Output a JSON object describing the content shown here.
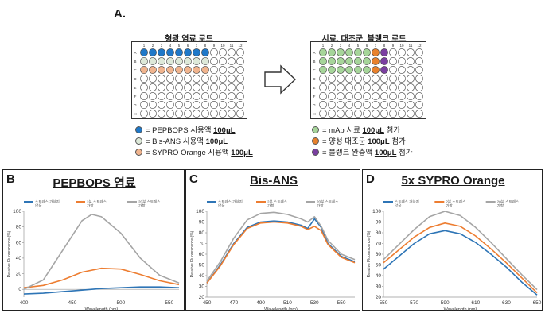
{
  "panel_a": {
    "letter": "A.",
    "plate_left_title": "형광 염료 로드",
    "plate_right_title": "시료, 대조군, 블랭크 로드",
    "col_numbers": [
      "1",
      "2",
      "3",
      "4",
      "5",
      "6",
      "7",
      "8",
      "9",
      "10",
      "11",
      "12"
    ],
    "row_letters": [
      "A",
      "B",
      "C",
      "D",
      "E",
      "F",
      "G",
      "H"
    ],
    "colors": {
      "pepbops": "#1f78c8",
      "bisans": "#dde9d9",
      "sypro": "#f0b48e",
      "mab": "#a6d59a",
      "positive": "#e8812c",
      "blank": "#7a3fa0"
    },
    "legend_left": [
      {
        "icon": "blue-dot",
        "prefix": "= PEPBOPS 시용액 ",
        "amount": "100μL",
        "suffix": ""
      },
      {
        "icon": "light-green-dot",
        "prefix": "= Bis-ANS 시용액 ",
        "amount": "100μL",
        "suffix": ""
      },
      {
        "icon": "peach-dot",
        "prefix": "= SYPRO Orange 시용액 ",
        "amount": "100μL",
        "suffix": ""
      }
    ],
    "legend_right": [
      {
        "icon": "green-dot",
        "prefix": "= mAb 시료 ",
        "amount": "100μL",
        "suffix": " 첨가"
      },
      {
        "icon": "orange-dot",
        "prefix": "= 양성 대조군 ",
        "amount": "100μL",
        "suffix": " 첨가"
      },
      {
        "icon": "purple-dot",
        "prefix": "= 블랭크 완충액 ",
        "amount": "100μL",
        "suffix": " 첨가"
      }
    ]
  },
  "chart_data": [
    {
      "panel": "B",
      "type": "line",
      "title": "PEPBOPS 염료",
      "xlabel": "Wavelength (nm)",
      "ylabel": "Relative Fluorescence (%)",
      "xlim": [
        400,
        560
      ],
      "ylim": [
        -10,
        100
      ],
      "xticks": [
        400,
        450,
        500,
        550
      ],
      "yticks": [
        0,
        20,
        40,
        60,
        80,
        100
      ],
      "legend": "top",
      "series": [
        {
          "name": "스트레스 가하지 않음",
          "color": "#2e75b6",
          "x": [
            400,
            420,
            440,
            460,
            480,
            500,
            520,
            540,
            560
          ],
          "y": [
            -6,
            -5,
            -3,
            -1,
            1,
            2,
            3,
            3,
            2
          ]
        },
        {
          "name": "2분 스트레스 가함",
          "color": "#ed7d31",
          "x": [
            400,
            420,
            440,
            460,
            480,
            500,
            520,
            540,
            560
          ],
          "y": [
            2,
            5,
            12,
            22,
            27,
            26,
            19,
            11,
            6
          ]
        },
        {
          "name": "20분 스트레스 가함",
          "color": "#a5a5a5",
          "x": [
            400,
            420,
            440,
            460,
            470,
            480,
            500,
            520,
            540,
            560
          ],
          "y": [
            0,
            12,
            50,
            88,
            96,
            93,
            72,
            40,
            18,
            8
          ]
        }
      ]
    },
    {
      "panel": "C",
      "type": "line",
      "title": "Bis-ANS",
      "xlabel": "Wavelength (nm)",
      "ylabel": "Relative Fluorescence (%)",
      "xlim": [
        450,
        560
      ],
      "ylim": [
        20,
        100
      ],
      "xticks": [
        450,
        470,
        490,
        510,
        530,
        550
      ],
      "yticks": [
        20,
        30,
        40,
        50,
        60,
        70,
        80,
        90,
        100
      ],
      "legend": "top",
      "series": [
        {
          "name": "스트레스 가하지 않음",
          "color": "#2e75b6",
          "x": [
            450,
            460,
            470,
            480,
            490,
            500,
            510,
            520,
            525,
            530,
            535,
            540,
            550,
            560
          ],
          "y": [
            33,
            50,
            70,
            85,
            90,
            91,
            90,
            87,
            84,
            93,
            85,
            70,
            58,
            53
          ]
        },
        {
          "name": "2분 스트레스 가함",
          "color": "#ed7d31",
          "x": [
            450,
            460,
            470,
            480,
            490,
            500,
            510,
            520,
            525,
            530,
            535,
            540,
            550,
            560
          ],
          "y": [
            33,
            49,
            69,
            84,
            89,
            90,
            89,
            86,
            83,
            86,
            82,
            69,
            57,
            52
          ]
        },
        {
          "name": "20분 스트레스 가함",
          "color": "#a5a5a5",
          "x": [
            450,
            460,
            470,
            480,
            490,
            500,
            510,
            520,
            525,
            530,
            535,
            540,
            550,
            560
          ],
          "y": [
            35,
            53,
            75,
            92,
            98,
            99,
            97,
            93,
            90,
            95,
            86,
            73,
            60,
            55
          ]
        }
      ]
    },
    {
      "panel": "D",
      "type": "line",
      "title": "5x SYPRO Orange",
      "xlabel": "Wavelength (nm)",
      "ylabel": "Relative Fluorescence (%)",
      "xlim": [
        550,
        650
      ],
      "ylim": [
        20,
        100
      ],
      "xticks": [
        550,
        570,
        590,
        610,
        630,
        650
      ],
      "yticks": [
        20,
        30,
        40,
        50,
        60,
        70,
        80,
        90,
        100
      ],
      "legend": "top",
      "series": [
        {
          "name": "스트레스 가하지 않음",
          "color": "#2e75b6",
          "x": [
            550,
            560,
            570,
            580,
            590,
            600,
            610,
            620,
            630,
            640,
            650
          ],
          "y": [
            46,
            58,
            70,
            79,
            82,
            79,
            71,
            60,
            48,
            34,
            22
          ]
        },
        {
          "name": "2분 스트레스 가함",
          "color": "#ed7d31",
          "x": [
            550,
            560,
            570,
            580,
            590,
            600,
            610,
            620,
            630,
            640,
            650
          ],
          "y": [
            52,
            64,
            76,
            85,
            89,
            86,
            77,
            65,
            52,
            38,
            24
          ]
        },
        {
          "name": "20분 스트레스 가함",
          "color": "#a5a5a5",
          "x": [
            550,
            560,
            570,
            580,
            590,
            600,
            610,
            620,
            630,
            640,
            650
          ],
          "y": [
            55,
            69,
            83,
            95,
            100,
            96,
            85,
            71,
            56,
            41,
            27
          ]
        }
      ]
    }
  ]
}
